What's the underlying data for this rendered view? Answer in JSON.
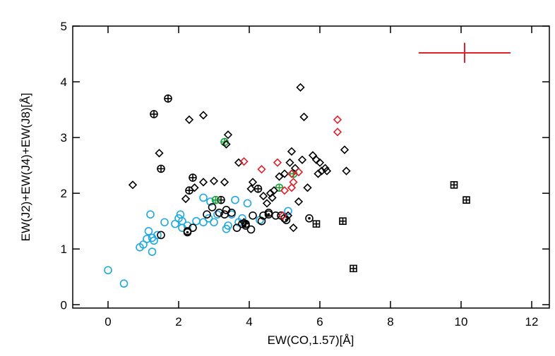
{
  "chart_data": {
    "type": "scatter",
    "x_label": "EW(CO,1.57)[Å]",
    "y_label": "EW(J2)+EW(J4)+EW(J8)[Å]",
    "xlim": [
      -1,
      12.5
    ],
    "ylim": [
      -0.06,
      5
    ],
    "xticks": [
      0,
      2,
      4,
      6,
      8,
      10,
      12
    ],
    "yticks": [
      0,
      1,
      2,
      3,
      4,
      5
    ],
    "series": [
      {
        "color": "#1ea8e0",
        "marker": "circle",
        "x": [
          0,
          0.45,
          0.9,
          1.0,
          1.1,
          1.15,
          1.2,
          1.25,
          1.3,
          1.25,
          1.4,
          1.6,
          1.9,
          2.0,
          2.05,
          2.1,
          2.1,
          2.5,
          2.7,
          2.7,
          2.85,
          2.9,
          3.0,
          3.1,
          3.4,
          3.5,
          3.6,
          3.7,
          3.8,
          3.95,
          4.3,
          5.1,
          2.25,
          3.35
        ],
        "values": [
          0.62,
          0.38,
          1.03,
          1.08,
          1.18,
          1.32,
          1.62,
          0.95,
          1.15,
          1.2,
          1.25,
          1.48,
          1.45,
          1.55,
          1.62,
          1.38,
          1.5,
          1.5,
          1.48,
          1.92,
          1.55,
          1.85,
          1.48,
          1.62,
          1.42,
          1.62,
          1.88,
          1.48,
          1.55,
          1.82,
          1.52,
          1.68,
          1.42,
          1.36
        ]
      },
      {
        "color": "#000000",
        "marker": "circle",
        "x": [
          1.5,
          2.25,
          2.4,
          2.8,
          2.95,
          3.15,
          3.35,
          3.5,
          3.65,
          3.8,
          3.9,
          4.05,
          4.1,
          4.35,
          4.4,
          4.55,
          4.9,
          5.0,
          4.75,
          3.3
        ],
        "values": [
          1.25,
          1.32,
          1.38,
          1.62,
          1.75,
          1.65,
          1.7,
          1.65,
          1.38,
          1.45,
          1.42,
          1.35,
          1.6,
          1.5,
          1.6,
          1.65,
          1.6,
          1.55,
          1.6,
          1.62
        ]
      },
      {
        "color": "#000000",
        "marker": "circle-dot",
        "x": [
          5.7,
          5.05,
          4.55,
          2.25
        ],
        "values": [
          1.55,
          1.52,
          1.62,
          1.3
        ]
      },
      {
        "color": "#000000",
        "marker": "circle-plus",
        "x": [
          1.3,
          1.7,
          1.5,
          2.4,
          2.3,
          3.2,
          4.25,
          3.9
        ],
        "values": [
          3.42,
          3.7,
          2.44,
          2.28,
          2.05,
          1.88,
          2.08,
          1.45
        ]
      },
      {
        "color": "#1a9e3a",
        "marker": "circle-plus",
        "x": [
          3.3,
          3.05,
          4.85,
          5.25
        ],
        "values": [
          2.92,
          1.88,
          2.1,
          2.35
        ]
      },
      {
        "color": "#000000",
        "marker": "diamond",
        "x": [
          0.7,
          1.45,
          2.3,
          2.7,
          3.4,
          3.35,
          5.45,
          5.55,
          2.45,
          2.7,
          3.0,
          3.3,
          3.7,
          4.1,
          4.4,
          4.6,
          4.7,
          4.85,
          5.0,
          5.15,
          5.2,
          5.3,
          5.5,
          5.65,
          5.8,
          5.9,
          6.0,
          6.05,
          6.15,
          6.2,
          5.95,
          6.7,
          6.75,
          5.4,
          5.25,
          5.1,
          4.5,
          4.65,
          4.05,
          2.2,
          3.85
        ],
        "values": [
          2.15,
          2.72,
          3.32,
          3.4,
          3.05,
          2.88,
          3.9,
          3.37,
          2.1,
          2.2,
          2.22,
          2.2,
          2.55,
          2.2,
          1.95,
          2.0,
          2.05,
          2.3,
          2.35,
          2.55,
          2.75,
          2.45,
          2.6,
          2.1,
          2.68,
          2.6,
          2.55,
          2.4,
          2.45,
          2.4,
          2.35,
          2.78,
          2.4,
          1.85,
          1.38,
          1.6,
          1.82,
          1.92,
          2.08,
          1.9,
          1.48
        ]
      },
      {
        "color": "#e0202a",
        "marker": "diamond",
        "x": [
          3.85,
          4.35,
          4.8,
          5.25,
          5.4,
          6.5,
          6.5,
          5.0,
          5.2,
          4.95,
          5.2
        ],
        "values": [
          2.57,
          2.43,
          2.55,
          2.2,
          2.38,
          3.32,
          3.1,
          2.05,
          2.35,
          1.6,
          2.1
        ]
      },
      {
        "color": "#000000",
        "marker": "square-plus",
        "x": [
          5.9,
          6.65,
          6.95,
          9.8,
          10.15
        ],
        "values": [
          1.45,
          1.5,
          0.65,
          2.15,
          1.88
        ]
      }
    ],
    "error_bar": {
      "x": 10.1,
      "y": 4.52,
      "xerr": 1.3,
      "yerr": 0.18,
      "color": "#e0202a"
    }
  }
}
